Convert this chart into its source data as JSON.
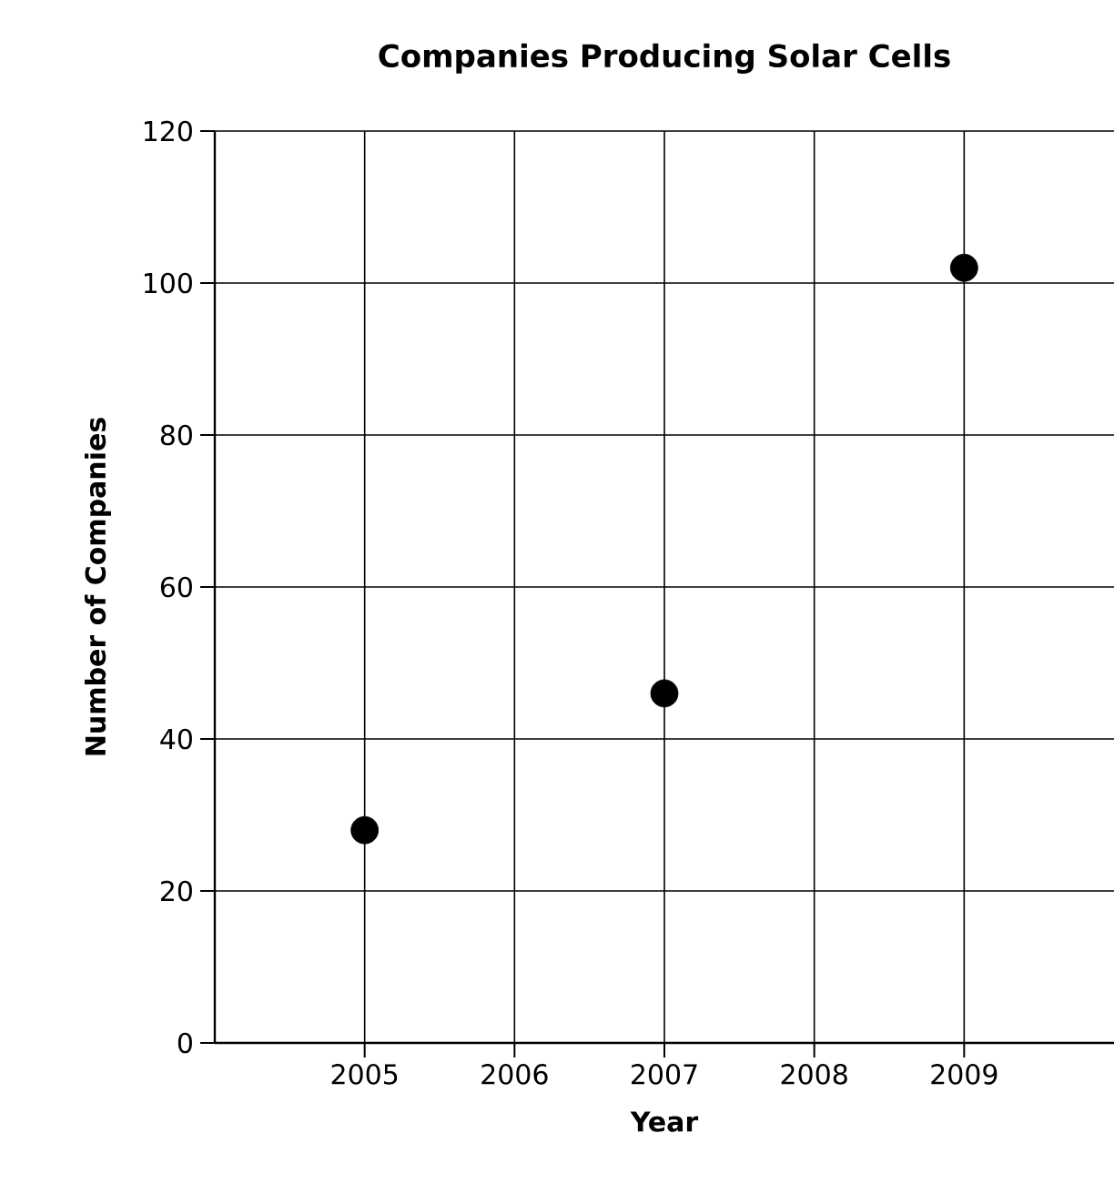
{
  "chart_data": {
    "type": "scatter",
    "title": "Companies Producing Solar Cells",
    "xlabel": "Year",
    "ylabel": "Number of Companies",
    "x": [
      2005,
      2007,
      2009
    ],
    "series": [
      {
        "color": "#000000",
        "values": [
          28,
          46,
          102
        ]
      }
    ],
    "xlim": [
      2004,
      2010
    ],
    "xticks": [
      2005,
      2006,
      2007,
      2008,
      2009
    ],
    "ylim": [
      0,
      120
    ],
    "yticks": [
      0,
      20,
      40,
      60,
      80,
      100,
      120
    ],
    "grid": true
  }
}
